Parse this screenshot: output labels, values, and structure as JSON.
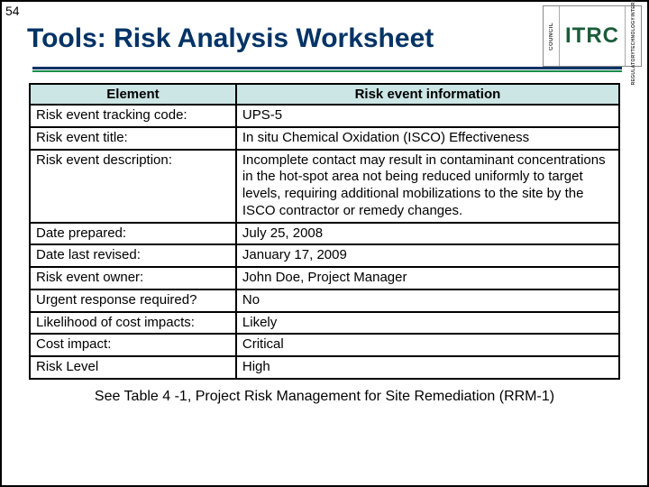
{
  "slide_number": "54",
  "title": "Tools: Risk Analysis Worksheet",
  "logo": {
    "left_top": "COUNCIL",
    "center": "ITRC",
    "right_top": "INTERSTATE",
    "right_mid": "TECHNOLOGY",
    "right_bot": "REGULATORY"
  },
  "table": {
    "header_left": "Element",
    "header_right": "Risk event information",
    "rows": [
      {
        "label": "Risk event tracking code:",
        "value": "UPS-5"
      },
      {
        "label": "Risk event title:",
        "value": "In situ Chemical Oxidation (ISCO) Effectiveness"
      },
      {
        "label": "Risk event description:",
        "value": "Incomplete contact may result in contaminant concentrations in the hot-spot area not being reduced uniformly to target levels, requiring additional mobilizations to the site by the ISCO contractor or remedy changes."
      },
      {
        "label": "Date prepared:",
        "value": "July 25, 2008"
      },
      {
        "label": "Date last revised:",
        "value": "January 17, 2009"
      },
      {
        "label": "Risk event owner:",
        "value": "John Doe, Project Manager"
      },
      {
        "label": "Urgent response required?",
        "value": "No"
      },
      {
        "label": "Likelihood of cost impacts:",
        "value": "Likely"
      },
      {
        "label": "Cost impact:",
        "value": "Critical"
      },
      {
        "label": "Risk Level",
        "value": "High"
      }
    ]
  },
  "footnote": "See Table 4 -1, Project Risk Management for Site Remediation (RRM-1)"
}
